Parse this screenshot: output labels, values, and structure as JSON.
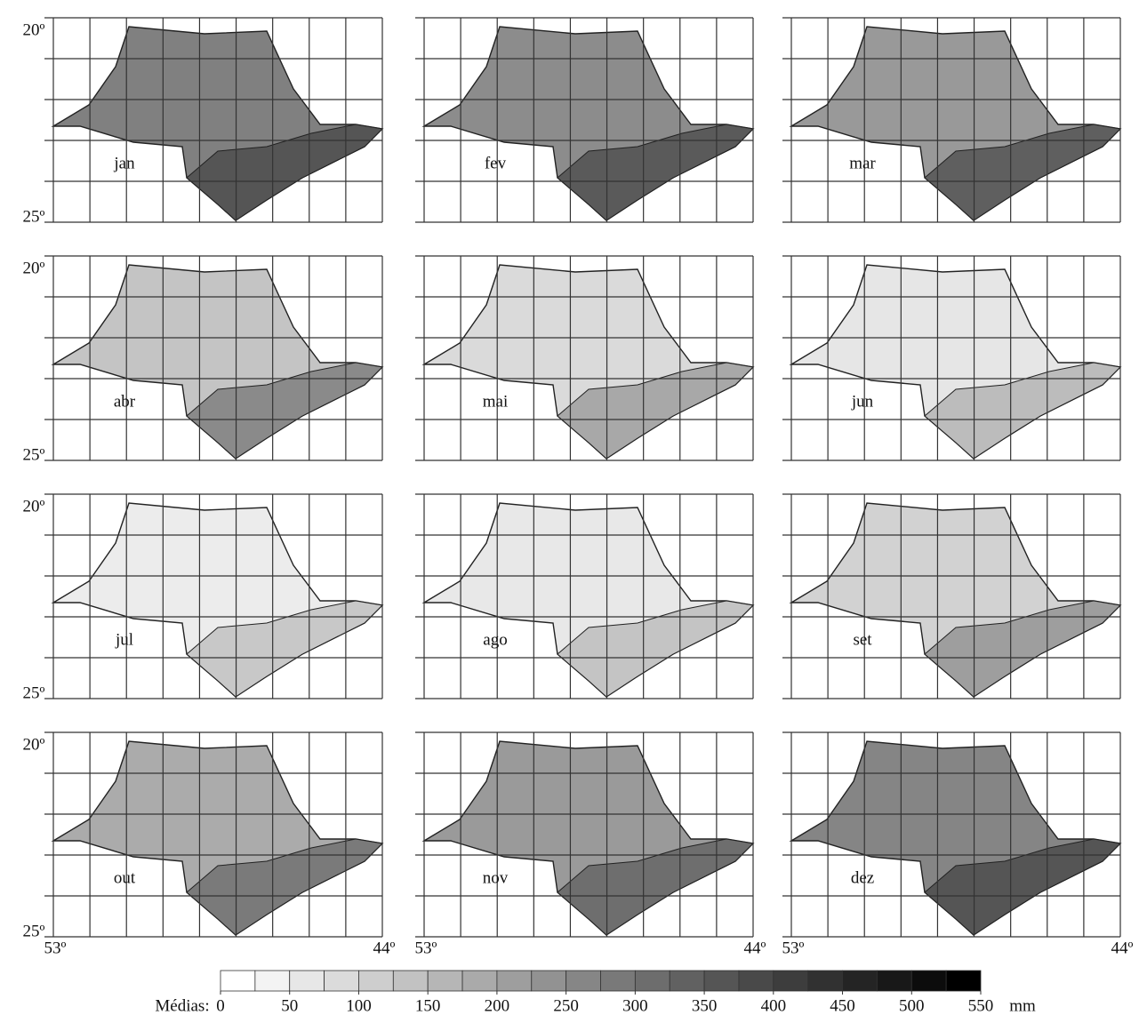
{
  "panels": [
    {
      "label": "jan",
      "color": "#808080",
      "coast": "#555555"
    },
    {
      "label": "fev",
      "color": "#8c8c8c",
      "coast": "#5a5a5a"
    },
    {
      "label": "mar",
      "color": "#999999",
      "coast": "#5f5f5f"
    },
    {
      "label": "abr",
      "color": "#c4c4c4",
      "coast": "#8a8a8a"
    },
    {
      "label": "mai",
      "color": "#dadada",
      "coast": "#a8a8a8"
    },
    {
      "label": "jun",
      "color": "#e6e6e6",
      "coast": "#bcbcbc"
    },
    {
      "label": "jul",
      "color": "#ececec",
      "coast": "#c8c8c8"
    },
    {
      "label": "ago",
      "color": "#e8e8e8",
      "coast": "#c4c4c4"
    },
    {
      "label": "set",
      "color": "#d2d2d2",
      "coast": "#9e9e9e"
    },
    {
      "label": "out",
      "color": "#ababab",
      "coast": "#7a7a7a"
    },
    {
      "label": "nov",
      "color": "#9a9a9a",
      "coast": "#6e6e6e"
    },
    {
      "label": "dez",
      "color": "#858585",
      "coast": "#555555"
    }
  ],
  "lat_labels": [
    "20º",
    "25º"
  ],
  "lon_labels": [
    "53º",
    "44º"
  ],
  "legend": {
    "label": "Médias:",
    "unit": "mm",
    "lim": [
      0,
      550
    ],
    "ticks": [
      0,
      50,
      100,
      150,
      200,
      250,
      300,
      350,
      400,
      450,
      500,
      550
    ]
  }
}
